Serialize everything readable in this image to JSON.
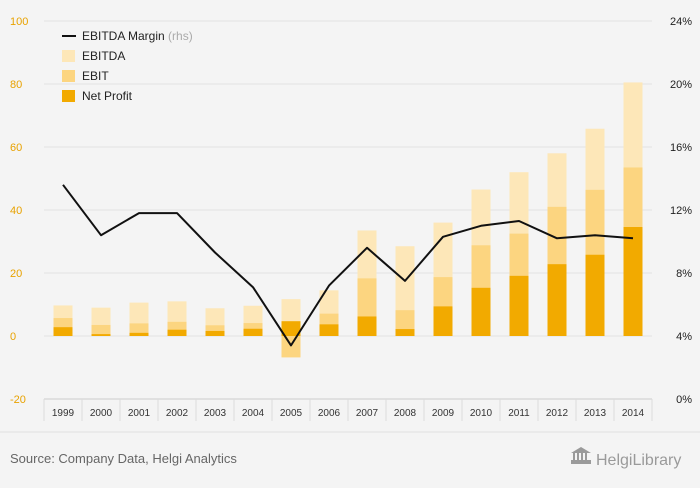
{
  "chart_data": {
    "type": "bar",
    "categories": [
      "1999",
      "2000",
      "2001",
      "2002",
      "2003",
      "2004",
      "2005",
      "2006",
      "2007",
      "2008",
      "2009",
      "2010",
      "2011",
      "2012",
      "2013",
      "2014"
    ],
    "series": [
      {
        "name": "EBITDA",
        "kind": "bar",
        "axis": "left",
        "color": "#fde7b8",
        "values": [
          9.7,
          9.0,
          10.6,
          11.0,
          8.8,
          9.6,
          11.7,
          14.5,
          33.5,
          28.5,
          36.0,
          46.5,
          52.0,
          58.0,
          65.8,
          80.5
        ]
      },
      {
        "name": "EBIT",
        "kind": "bar",
        "axis": "left",
        "color": "#fcd580",
        "values": [
          5.7,
          3.5,
          4.0,
          4.5,
          3.4,
          4.1,
          -6.8,
          7.1,
          18.3,
          8.2,
          18.7,
          28.8,
          32.5,
          41.0,
          46.4,
          53.5
        ]
      },
      {
        "name": "Net Profit",
        "kind": "bar",
        "axis": "left",
        "color": "#f2aa00",
        "values": [
          2.8,
          0.6,
          1.0,
          2.0,
          1.6,
          2.3,
          4.7,
          3.7,
          6.2,
          2.2,
          9.4,
          15.3,
          19.1,
          22.8,
          25.8,
          34.6
        ]
      },
      {
        "name": "EBITDA Margin",
        "kind": "line",
        "axis": "right",
        "color": "#111111",
        "values": [
          13.6,
          10.4,
          11.8,
          11.8,
          9.3,
          7.1,
          3.4,
          7.2,
          9.6,
          7.5,
          10.3,
          11.0,
          11.3,
          10.2,
          10.4,
          10.2
        ]
      }
    ],
    "yleft": {
      "min": -20,
      "max": 100,
      "ticks": [
        "-20",
        "0",
        "20",
        "40",
        "60",
        "80",
        "100"
      ]
    },
    "yright": {
      "min": 0,
      "max": 24,
      "ticks": [
        "0%",
        "4%",
        "8%",
        "12%",
        "16%",
        "20%",
        "24%"
      ]
    },
    "legend": {
      "position": "top-left",
      "items": [
        {
          "label": "EBITDA Margin",
          "suffix": "(rhs)",
          "swatch": "line",
          "color": "#111111"
        },
        {
          "label": "EBITDA",
          "swatch": "box",
          "color": "#fde7b8"
        },
        {
          "label": "EBIT",
          "swatch": "box",
          "color": "#fcd580"
        },
        {
          "label": "Net Profit",
          "swatch": "box",
          "color": "#f2aa00"
        }
      ]
    },
    "grid": "horizontal",
    "title": "",
    "xlabel": "",
    "ylabel": ""
  },
  "footer": {
    "source": "Source: Company Data, Helgi Analytics",
    "brand": "HelgiLibrary"
  },
  "colors": {
    "background": "#f4f4f4",
    "left_axis_text": "#e8a200",
    "grid": "#e2e2e2"
  }
}
